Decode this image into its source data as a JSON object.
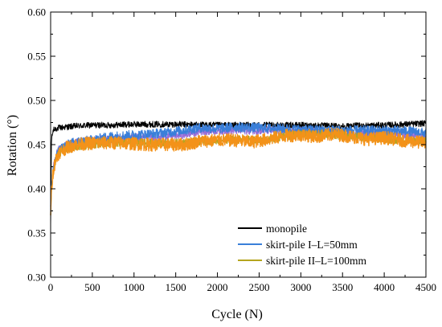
{
  "chart_data": {
    "type": "line",
    "title": "",
    "xlabel": "Cycle (N)",
    "ylabel": "Rotation (°)",
    "xlim": [
      0,
      4500
    ],
    "ylim": [
      0.3,
      0.6
    ],
    "xticks": [
      0,
      500,
      1000,
      1500,
      2000,
      2500,
      3000,
      3500,
      4000,
      4500
    ],
    "yticks": [
      0.3,
      0.35,
      0.4,
      0.45,
      0.5,
      0.55,
      0.6
    ],
    "xtick_labels": [
      "0",
      "500",
      "1000",
      "1500",
      "2000",
      "2500",
      "3000",
      "3500",
      "4000",
      "4500"
    ],
    "ytick_labels": [
      "0.30",
      "0.35",
      "0.40",
      "0.45",
      "0.50",
      "0.55",
      "0.60"
    ],
    "legend_position": "bottom-right",
    "grid": false,
    "series": [
      {
        "name": "monopile",
        "color": "#000000",
        "x": [
          0,
          10,
          30,
          60,
          100,
          200,
          300,
          500,
          700,
          1000,
          1500,
          2000,
          2500,
          3000,
          3500,
          4000,
          4500
        ],
        "y": [
          0.36,
          0.455,
          0.466,
          0.468,
          0.469,
          0.47,
          0.471,
          0.472,
          0.472,
          0.473,
          0.473,
          0.472,
          0.472,
          0.472,
          0.471,
          0.472,
          0.474
        ]
      },
      {
        "name": "skirt-pile I–L=50mm",
        "color": "#3a7fd9",
        "x": [
          0,
          10,
          30,
          60,
          100,
          200,
          300,
          500,
          700,
          1000,
          1200,
          1500,
          1800,
          2000,
          2200,
          2500,
          2800,
          3000,
          3500,
          4000,
          4300,
          4500
        ],
        "y": [
          0.38,
          0.4,
          0.42,
          0.435,
          0.443,
          0.45,
          0.453,
          0.455,
          0.459,
          0.461,
          0.462,
          0.465,
          0.469,
          0.468,
          0.47,
          0.469,
          0.468,
          0.467,
          0.466,
          0.466,
          0.465,
          0.463
        ]
      },
      {
        "name": "skirt-pile II–L=100mm",
        "color": "#b5a51e",
        "x": [
          0,
          10,
          30,
          60,
          100,
          200,
          300,
          500,
          700,
          1000,
          1200,
          1500,
          1700,
          2000,
          2300,
          2500,
          2800,
          3000,
          3300,
          3500,
          3800,
          4000,
          4200,
          4500
        ],
        "y": [
          0.37,
          0.4,
          0.418,
          0.432,
          0.44,
          0.445,
          0.448,
          0.45,
          0.452,
          0.452,
          0.452,
          0.452,
          0.453,
          0.455,
          0.456,
          0.455,
          0.459,
          0.462,
          0.462,
          0.46,
          0.458,
          0.456,
          0.455,
          0.454
        ]
      },
      {
        "name": "",
        "color": "#9a6ed8",
        "x": [
          0,
          10,
          30,
          60,
          100,
          200,
          300,
          500,
          800,
          1000,
          1300,
          1600,
          1800,
          2000,
          2300,
          2600,
          2800,
          3000,
          3300,
          3600,
          4000,
          4300,
          4500
        ],
        "y": [
          0.375,
          0.4,
          0.425,
          0.437,
          0.445,
          0.45,
          0.452,
          0.455,
          0.457,
          0.458,
          0.459,
          0.461,
          0.465,
          0.466,
          0.466,
          0.466,
          0.465,
          0.465,
          0.464,
          0.463,
          0.462,
          0.461,
          0.46
        ]
      },
      {
        "name": "",
        "color": "#f39219",
        "x": [
          0,
          10,
          30,
          60,
          100,
          200,
          300,
          400,
          600,
          800,
          1000,
          1200,
          1400,
          1600,
          1800,
          2000,
          2200,
          2400,
          2600,
          2800,
          3000,
          3200,
          3400,
          3600,
          3800,
          4000,
          4200,
          4400,
          4500
        ],
        "y": [
          0.37,
          0.4,
          0.42,
          0.433,
          0.441,
          0.447,
          0.45,
          0.451,
          0.452,
          0.452,
          0.451,
          0.45,
          0.45,
          0.45,
          0.454,
          0.455,
          0.455,
          0.453,
          0.456,
          0.46,
          0.461,
          0.459,
          0.462,
          0.459,
          0.456,
          0.458,
          0.455,
          0.453,
          0.452
        ]
      }
    ],
    "legend": [
      {
        "label": "monopile",
        "color": "#000000"
      },
      {
        "label": "skirt-pile I–L=50mm",
        "color": "#3a7fd9"
      },
      {
        "label": "skirt-pile II–L=100mm",
        "color": "#b5a51e"
      }
    ]
  }
}
